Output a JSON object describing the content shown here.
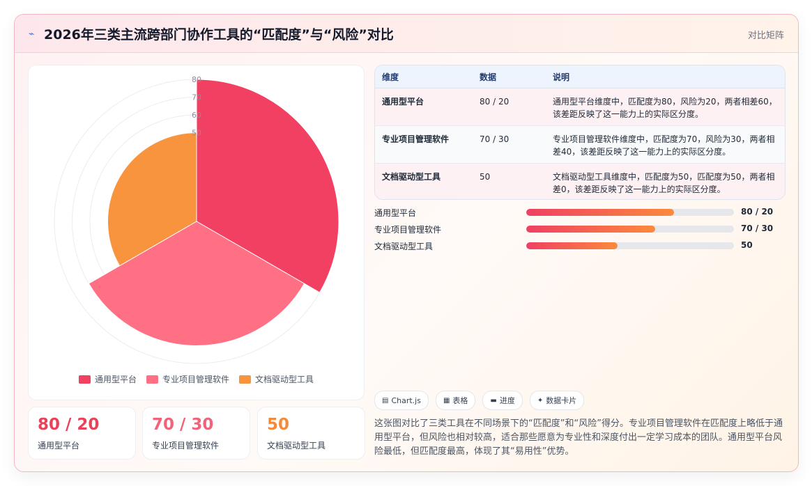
{
  "header": {
    "title": "2026年三类主流跨部门协作工具的“匹配度”与“风险”对比",
    "tag": "对比矩阵",
    "icon": "chart-bolt-icon"
  },
  "chart_data": {
    "type": "polarArea",
    "categories": [
      "通用型平台",
      "专业项目管理软件",
      "文档驱动型工具"
    ],
    "values": [
      80,
      70,
      50
    ],
    "colors": [
      "#f24062",
      "#ff7085",
      "#f8943e"
    ],
    "r_ticks": [
      "50",
      "60",
      "70",
      "80"
    ],
    "r_max": 80,
    "grid": true,
    "legend_position": "bottom"
  },
  "stats": [
    {
      "value": "80 / 20",
      "label": "通用型平台",
      "color": "#e8435a"
    },
    {
      "value": "70 / 30",
      "label": "专业项目管理软件",
      "color": "#f06378"
    },
    {
      "value": "50",
      "label": "文档驱动型工具",
      "color": "#f48b3a"
    }
  ],
  "table": {
    "headers": [
      "维度",
      "数据",
      "说明"
    ],
    "rows": [
      [
        "通用型平台",
        "80 / 20",
        "通用型平台维度中，匹配度为80，风险为20，两者相差60，该差距反映了这一能力上的实际区分度。"
      ],
      [
        "专业项目管理软件",
        "70 / 30",
        "专业项目管理软件维度中，匹配度为70，风险为30，两者相差40，该差距反映了这一能力上的实际区分度。"
      ],
      [
        "文档驱动型工具",
        "50",
        "文档驱动型工具维度中，匹配度为50，匹配度为50，两者相差0，该差距反映了这一能力上的实际区分度。"
      ]
    ]
  },
  "bars": [
    {
      "label": "通用型平台",
      "value": "80 / 20",
      "fraction": 0.71
    },
    {
      "label": "专业项目管理软件",
      "value": "70 / 30",
      "fraction": 0.62
    },
    {
      "label": "文档驱动型工具",
      "value": "50",
      "fraction": 0.44
    }
  ],
  "tags": [
    {
      "icon": "chart-icon",
      "glyph": "▤",
      "label": "Chart.js"
    },
    {
      "icon": "table-icon",
      "glyph": "▦",
      "label": "表格"
    },
    {
      "icon": "progress-icon",
      "glyph": "▬",
      "label": "进度"
    },
    {
      "icon": "card-icon",
      "glyph": "✦",
      "label": "数据卡片"
    }
  ],
  "description": "这张图对比了三类工具在不同场景下的“匹配度”和“风险”得分。专业项目管理软件在匹配度上略低于通用型平台，但风险也相对较高，适合那些愿意为专业性和深度付出一定学习成本的团队。通用型平台风险最低，但匹配度最高，体现了其“易用性”优势。"
}
